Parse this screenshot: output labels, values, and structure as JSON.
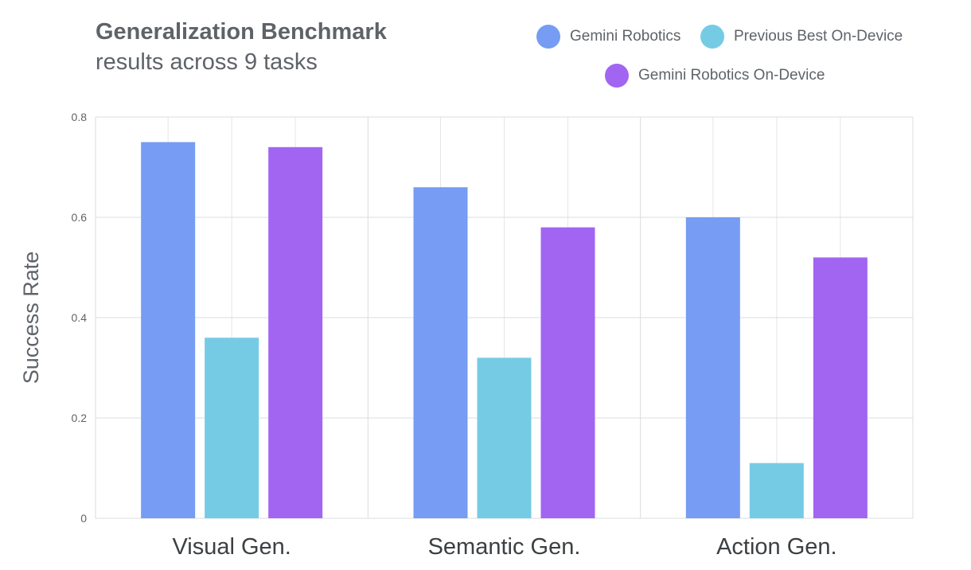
{
  "chart_data": {
    "type": "bar",
    "title": "Generalization Benchmark",
    "subtitle": "results across 9 tasks",
    "xlabel": "",
    "ylabel": "Success Rate",
    "ylim": [
      0,
      0.8
    ],
    "yticks": [
      0,
      0.2,
      0.4,
      0.6,
      0.8
    ],
    "ytick_labels": [
      "0",
      "0.2",
      "0.4",
      "0.6",
      "0.8"
    ],
    "categories": [
      "Visual Gen.",
      "Semantic Gen.",
      "Action Gen."
    ],
    "series": [
      {
        "name": "Gemini Robotics",
        "color": "#769cf3",
        "values": [
          0.75,
          0.66,
          0.6
        ]
      },
      {
        "name": "Previous Best On-Device",
        "color": "#76cbe4",
        "values": [
          0.36,
          0.32,
          0.11
        ]
      },
      {
        "name": "Gemini Robotics On-Device",
        "color": "#a265f2",
        "values": [
          0.74,
          0.58,
          0.52
        ]
      }
    ],
    "grid": true,
    "legend_position": "top-right"
  }
}
